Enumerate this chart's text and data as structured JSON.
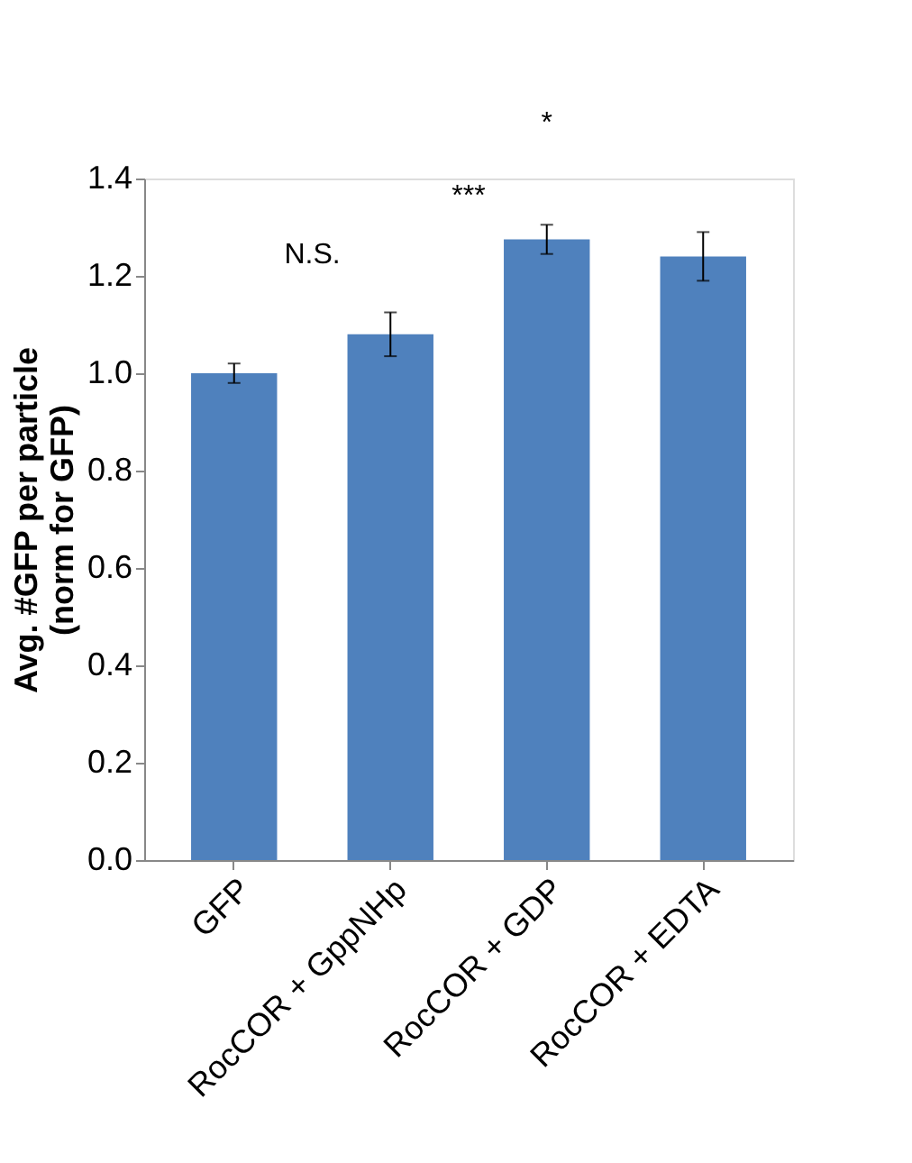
{
  "chart_data": {
    "type": "bar",
    "ylabel": "Avg. #GFP per particle\n(norm for GFP)",
    "categories": [
      "GFP",
      "RocCOR + GppNHp",
      "RocCOR + GDP",
      "RocCOR + EDTA"
    ],
    "values": [
      1.0,
      1.08,
      1.275,
      1.24
    ],
    "errors": [
      0.02,
      0.045,
      0.03,
      0.05
    ],
    "color": "#4f81bd",
    "ylim": [
      0,
      1.4
    ],
    "yticks": [
      {
        "value": 0,
        "label": "0.0"
      },
      {
        "value": 0.2,
        "label": "0.2"
      },
      {
        "value": 0.4,
        "label": "0.4"
      },
      {
        "value": 0.6,
        "label": "0.6"
      },
      {
        "value": 0.8,
        "label": "0.8"
      },
      {
        "value": 1.0,
        "label": "1.0"
      },
      {
        "value": 1.2,
        "label": "1.2"
      },
      {
        "value": 1.4,
        "label": "1.4"
      }
    ],
    "annotations": [
      "N.S.",
      "***",
      "*"
    ],
    "grid": false
  }
}
